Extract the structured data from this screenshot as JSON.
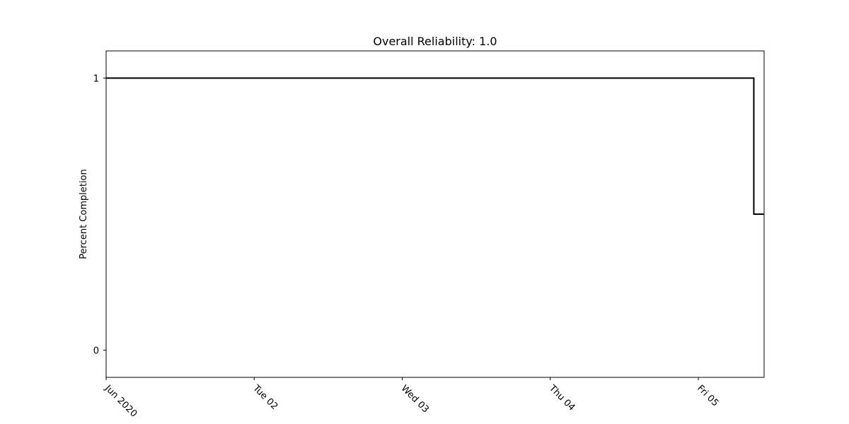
{
  "chart_data": {
    "type": "line",
    "step": true,
    "title": "Overall Reliability: 1.0",
    "xlabel": "",
    "ylabel": "Percent Completion",
    "x_tick_labels": [
      "Jun 2020",
      "Tue 02",
      "Wed 03",
      "Thu 04",
      "Fri 05"
    ],
    "y_tick_labels": [
      "0",
      "1"
    ],
    "xlim": [
      "2020-06-01 00:00",
      "2020-06-05 10:40"
    ],
    "ylim": [
      -0.1,
      1.1
    ],
    "grid": false,
    "legend": false,
    "series": [
      {
        "color": "#000000",
        "points": [
          {
            "x": "2020-06-01 00:00",
            "y": 1.0
          },
          {
            "x": "2020-06-05 09:00",
            "y": 1.0
          },
          {
            "x": "2020-06-05 09:00",
            "y": 0.5
          },
          {
            "x": "2020-06-05 10:40",
            "y": 0.5
          }
        ]
      }
    ]
  }
}
